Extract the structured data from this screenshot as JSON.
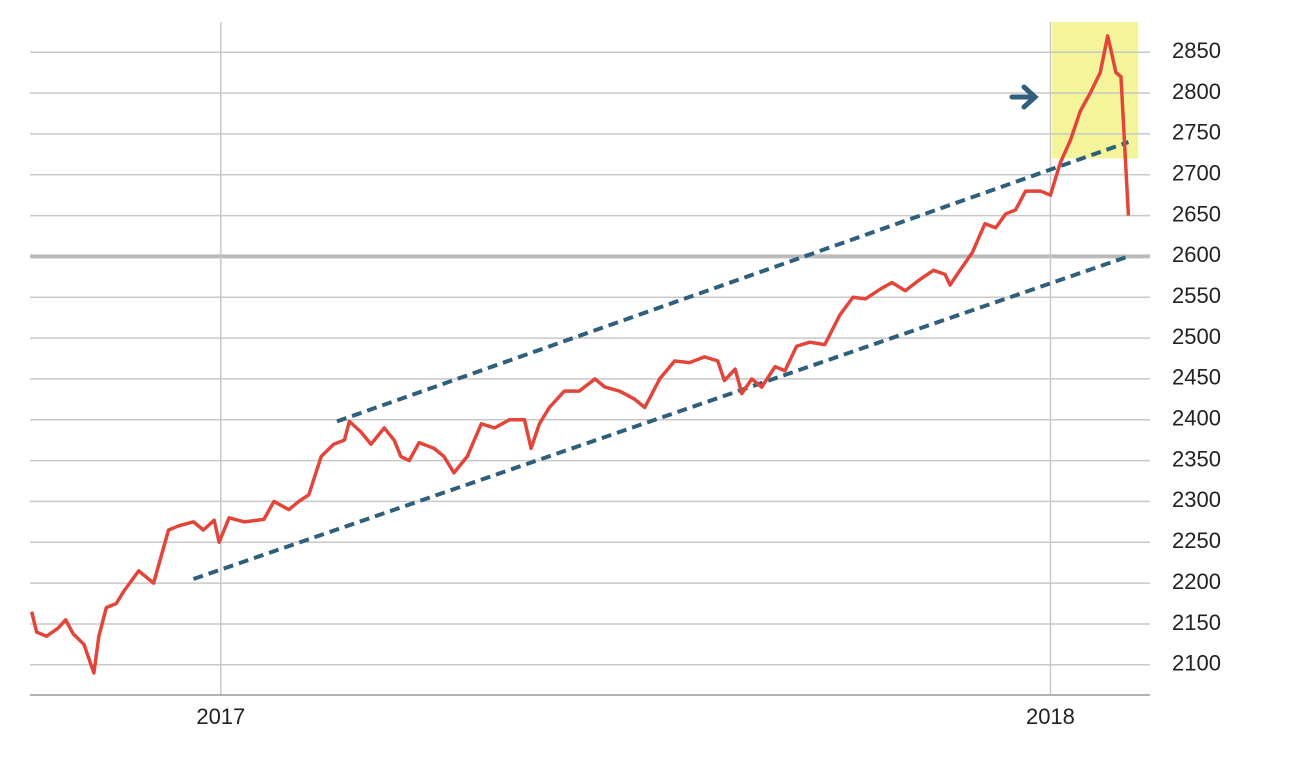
{
  "chart_data": {
    "type": "line",
    "x": [
      2016.772,
      2016.778,
      2016.79,
      2016.804,
      2016.813,
      2016.822,
      2016.835,
      2016.847,
      2016.853,
      2016.862,
      2016.874,
      2016.883,
      2016.901,
      2016.919,
      2016.937,
      2016.949,
      2016.967,
      2016.979,
      2016.992,
      2016.998,
      2017.01,
      2017.028,
      2017.052,
      2017.064,
      2017.082,
      2017.094,
      2017.106,
      2017.121,
      2017.136,
      2017.149,
      2017.155,
      2017.169,
      2017.181,
      2017.197,
      2017.209,
      2017.217,
      2017.227,
      2017.239,
      2017.257,
      2017.269,
      2017.281,
      2017.297,
      2017.314,
      2017.33,
      2017.348,
      2017.366,
      2017.374,
      2017.384,
      2017.396,
      2017.414,
      2017.432,
      2017.451,
      2017.463,
      2017.481,
      2017.499,
      2017.511,
      2017.529,
      2017.547,
      2017.565,
      2017.583,
      2017.599,
      2017.607,
      2017.62,
      2017.628,
      2017.64,
      2017.652,
      2017.668,
      2017.68,
      2017.694,
      2017.71,
      2017.728,
      2017.746,
      2017.762,
      2017.777,
      2017.795,
      2017.809,
      2017.825,
      2017.843,
      2017.859,
      2017.873,
      2017.879,
      2017.891,
      2017.906,
      2017.921,
      2017.934,
      2017.946,
      2017.958,
      2017.97,
      2017.988,
      2018.0,
      2018.012,
      2018.024,
      2018.036,
      2018.048,
      2018.06,
      2018.069,
      2018.079,
      2018.085,
      2018.094
    ],
    "values": [
      2165,
      2140,
      2135,
      2145,
      2155,
      2138,
      2125,
      2090,
      2135,
      2170,
      2175,
      2190,
      2215,
      2200,
      2265,
      2270,
      2275,
      2265,
      2277,
      2250,
      2280,
      2275,
      2278,
      2300,
      2290,
      2300,
      2308,
      2355,
      2370,
      2375,
      2398,
      2385,
      2370,
      2390,
      2375,
      2355,
      2350,
      2372,
      2365,
      2355,
      2335,
      2355,
      2395,
      2390,
      2400,
      2400,
      2365,
      2395,
      2415,
      2435,
      2435,
      2450,
      2440,
      2435,
      2425,
      2415,
      2450,
      2472,
      2470,
      2477,
      2472,
      2448,
      2462,
      2432,
      2450,
      2440,
      2465,
      2460,
      2490,
      2495,
      2492,
      2528,
      2550,
      2548,
      2560,
      2568,
      2558,
      2572,
      2583,
      2578,
      2565,
      2583,
      2605,
      2640,
      2635,
      2652,
      2657,
      2680,
      2680,
      2675,
      2715,
      2742,
      2778,
      2800,
      2825,
      2870,
      2825,
      2820,
      2650
    ],
    "color": "#e2453a",
    "xlim": [
      2016.77,
      2018.12
    ],
    "ylim": [
      2063,
      2887
    ],
    "xticks": [
      2017,
      2018
    ],
    "yticks": [
      2100,
      2150,
      2200,
      2250,
      2300,
      2350,
      2400,
      2450,
      2500,
      2550,
      2600,
      2650,
      2700,
      2750,
      2800,
      2850
    ],
    "grid": true,
    "emphasis_line": 2600,
    "trendlines": [
      {
        "x": [
          2017.14,
          2018.094
        ],
        "values": [
          2398,
          2740
        ],
        "color": "#2f5f7a"
      },
      {
        "x": [
          2016.967,
          2018.094
        ],
        "values": [
          2205,
          2600
        ],
        "color": "#2f5f7a"
      }
    ],
    "highlight": {
      "xlim": [
        2018.002,
        2018.106
      ],
      "ylim": [
        2720,
        2887
      ],
      "color": "#f4f59a"
    }
  }
}
